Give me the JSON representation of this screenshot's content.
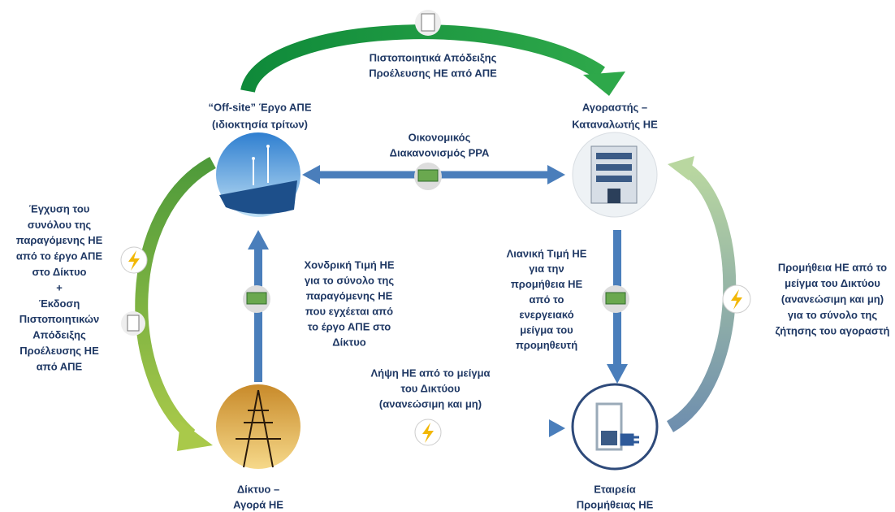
{
  "nodes": [
    {
      "label": [
        "“Off-site” Έργο ΑΠΕ",
        "(ιδιοκτησία τρίτων)"
      ]
    },
    {
      "label": [
        "Αγοραστής –",
        "Καταναλωτής ΗΕ"
      ]
    },
    {
      "label": [
        "Δίκτυο –",
        "Αγορά ΗΕ"
      ]
    },
    {
      "label": [
        "Εταιρεία",
        "Προμήθειας ΗΕ"
      ]
    }
  ],
  "flows": [
    {
      "label": [
        "Πιστοποιητικά Απόδειξης",
        "Προέλευσης ΗΕ από ΑΠΕ"
      ]
    },
    {
      "label": [
        "Οικονομικός",
        "Διακανονισμός PPA"
      ]
    },
    {
      "label": [
        "Έγχυση του",
        "συνόλου της",
        "παραγόμενης ΗΕ",
        "από το έργο ΑΠΕ",
        "στο Δίκτυο",
        "+",
        "Έκδοση",
        "Πιστοποιητικών",
        "Απόδειξης",
        "Προέλευσης ΗΕ",
        "από ΑΠΕ"
      ]
    },
    {
      "label": [
        "Χονδρική Τιμή ΗΕ",
        "για το σύνολο της",
        "παραγόμενης ΗΕ",
        "που εγχέεται από",
        "το έργο ΑΠΕ στο",
        "Δίκτυο"
      ]
    },
    {
      "label": [
        "Λιανική Τιμή ΗΕ",
        "για την",
        "προμήθεια ΗΕ",
        "από το",
        "ενεργειακό",
        "μείγμα του",
        "προμηθευτή"
      ]
    },
    {
      "label": [
        "Λήψη ΗΕ από το μείγμα",
        "του Δικτύου",
        "(ανανεώσιμη και μη)"
      ]
    },
    {
      "label": [
        "Προμήθεια ΗΕ από το",
        "μείγμα του Δικτύου",
        "(ανανεώσιμη και μη)",
        "για το σύνολο της",
        "ζήτησης του αγοραστή"
      ]
    }
  ]
}
